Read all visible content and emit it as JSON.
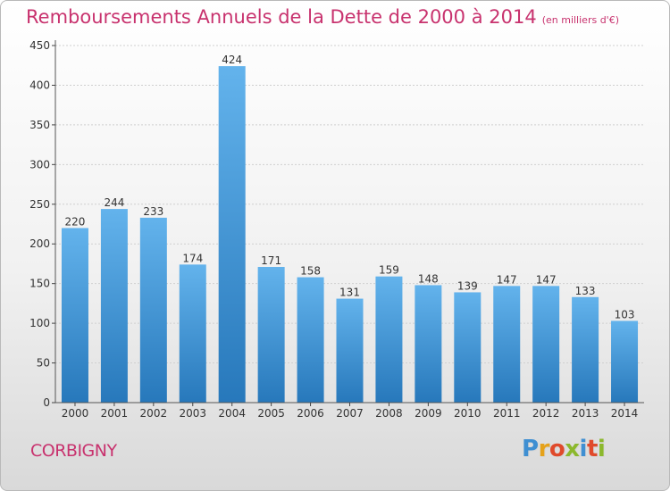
{
  "header": {
    "title": "Remboursements Annuels de la Dette de 2000 à 2014",
    "units": "(en milliers d'€)"
  },
  "commune": "CORBIGNY",
  "logo": [
    "P",
    "r",
    "o",
    "x",
    "i",
    "t",
    "i"
  ],
  "colors": {
    "title": "#c8326e",
    "bar_light": "#5fb0ea",
    "bar_dark": "#2a7fc1"
  },
  "chart_data": {
    "type": "bar",
    "title": "Remboursements Annuels de la Dette de 2000 à 2014",
    "subtitle": "(en milliers d'€)",
    "xlabel": "",
    "ylabel": "",
    "categories": [
      "2000",
      "2001",
      "2002",
      "2003",
      "2004",
      "2005",
      "2006",
      "2007",
      "2008",
      "2009",
      "2010",
      "2011",
      "2012",
      "2013",
      "2014"
    ],
    "values": [
      220,
      244,
      233,
      174,
      424,
      171,
      158,
      131,
      159,
      148,
      139,
      147,
      147,
      133,
      103
    ],
    "ylim": [
      0,
      450
    ],
    "yticks": [
      0,
      50,
      100,
      150,
      200,
      250,
      300,
      350,
      400,
      450
    ],
    "grid": true,
    "legend": "none"
  }
}
